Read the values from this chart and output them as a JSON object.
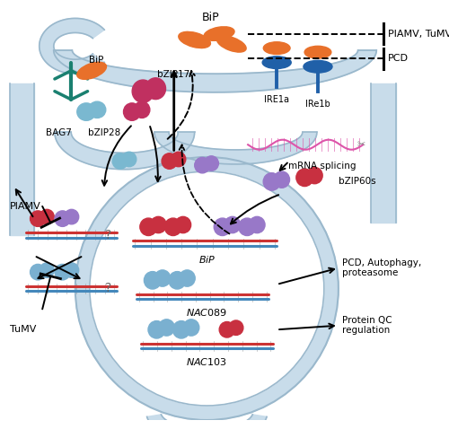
{
  "figsize": [
    5.0,
    4.78
  ],
  "dpi": 100,
  "bg_color": "#ffffff",
  "er_color": "#c8dcea",
  "er_stroke": "#9ab8cc",
  "orange_color": "#e8702a",
  "teal_color": "#1a8070",
  "light_blue_color": "#7ab8d0",
  "pink_color": "#c03060",
  "dark_blue_color": "#2060a8",
  "red_protein": "#c83040",
  "blue_protein": "#7ab0d0",
  "purple_protein": "#9878c8",
  "labels": {
    "BiP_top": "BiP",
    "BiP_er": "BiP",
    "BAG7": "BAG7",
    "bZIP28": "bZIP28",
    "bZIP17": "bZIP17",
    "IRE1a": "IRE1a",
    "IRe1b": "IRe1b",
    "mRNA": "mRNA splicing",
    "bZIP60s": "bZIP60s",
    "PlAMV": "PlAMV",
    "TuMV": "TuMV",
    "PLAMV_TUMV": "PlAMV, TuMV",
    "PCD": "PCD",
    "BiP_gene": "BiP",
    "NAC089": "NAC089",
    "NAC103": "NAC103",
    "PCD_auto": "PCD, Autophagy,\nproteasome",
    "ProteinQC": "Protein QC\nregulation"
  }
}
